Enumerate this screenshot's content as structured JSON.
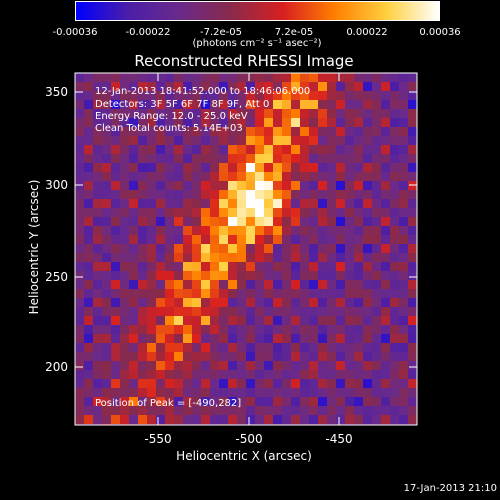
{
  "colorbar": {
    "ticks": [
      "-0.00036",
      "-0.00022",
      "-7.2e-05",
      "7.2e-05",
      "0.00022",
      "0.00036"
    ],
    "label": "(photons cm⁻² s⁻¹ asec⁻²)",
    "range": [
      -0.00036,
      0.00036
    ]
  },
  "info": {
    "time_range": "12-Jan-2013 18:41:52.000 to 18:46:06.000",
    "detectors": "Detectors: 3F 5F 6F 7F 8F 9F, Att 0",
    "energy_range": "Energy Range: 12.0 - 25.0 keV",
    "clean_counts": "Clean      Total counts: 5.14E+03",
    "peak": "Position of Peak = [-490,282]"
  },
  "footer": {
    "date": "17-Jan-2013 21:10"
  },
  "colors": {
    "background": "#000000",
    "text": "#ffffff",
    "colormap": [
      "#0000ff",
      "#4b1ea8",
      "#6a2a8a",
      "#8a2a4a",
      "#d82020",
      "#ff8000",
      "#ffd040",
      "#ffffff"
    ]
  },
  "chart_data": {
    "type": "heatmap",
    "title": "Reconstructed RHESSI Image",
    "xlabel": "Heliocentric X (arcsec)",
    "ylabel": "Heliocentric Y (arcsec)",
    "xlim": [
      -595,
      -490
    ],
    "ylim": [
      168,
      365
    ],
    "x_ticks": [
      -550,
      -500,
      -450
    ],
    "y_ticks": [
      200,
      250,
      300,
      350
    ],
    "peak": [
      -490,
      282
    ],
    "grid": false,
    "legend": "colorbar-top"
  }
}
